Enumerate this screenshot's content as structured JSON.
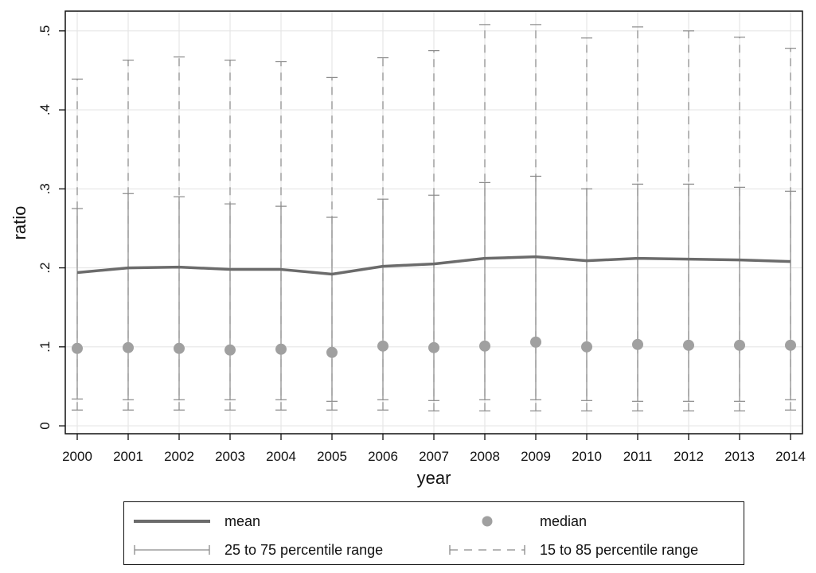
{
  "chart_data": {
    "type": "line",
    "xlabel": "year",
    "ylabel": "ratio",
    "x": [
      2000,
      2001,
      2002,
      2003,
      2004,
      2005,
      2006,
      2007,
      2008,
      2009,
      2010,
      2011,
      2012,
      2013,
      2014
    ],
    "x_tick_labels": [
      "2000",
      "2001",
      "2002",
      "2003",
      "2004",
      "2005",
      "2006",
      "2007",
      "2008",
      "2009",
      "2010",
      "2011",
      "2012",
      "2013",
      "2014"
    ],
    "y_ticks": [
      0,
      0.1,
      0.2,
      0.3,
      0.4,
      0.5
    ],
    "y_tick_labels": [
      "0",
      ".1",
      ".2",
      ".3",
      ".4",
      ".5"
    ],
    "ylim": [
      -0.01,
      0.525
    ],
    "grid": true,
    "legend_position": "bottom",
    "series": [
      {
        "name": "mean",
        "kind": "line",
        "color": "#6b6b6b",
        "values": [
          0.194,
          0.2,
          0.201,
          0.198,
          0.198,
          0.192,
          0.202,
          0.205,
          0.212,
          0.214,
          0.209,
          0.212,
          0.211,
          0.21,
          0.208
        ]
      },
      {
        "name": "median",
        "kind": "points",
        "color": "#a0a0a0",
        "values": [
          0.098,
          0.099,
          0.098,
          0.096,
          0.097,
          0.093,
          0.101,
          0.099,
          0.101,
          0.106,
          0.1,
          0.103,
          0.102,
          0.102,
          0.102
        ]
      },
      {
        "name": "25 to 75 percentile range",
        "kind": "range",
        "style": "solid",
        "color": "#8a8a8a",
        "low": [
          0.034,
          0.033,
          0.033,
          0.033,
          0.033,
          0.031,
          0.033,
          0.032,
          0.033,
          0.033,
          0.032,
          0.031,
          0.031,
          0.031,
          0.033
        ],
        "high": [
          0.275,
          0.294,
          0.29,
          0.281,
          0.278,
          0.264,
          0.287,
          0.292,
          0.308,
          0.316,
          0.3,
          0.306,
          0.306,
          0.302,
          0.297
        ]
      },
      {
        "name": "15 to 85 percentile range",
        "kind": "range",
        "style": "dashed",
        "color": "#8a8a8a",
        "low": [
          0.02,
          0.02,
          0.02,
          0.02,
          0.02,
          0.02,
          0.02,
          0.019,
          0.019,
          0.019,
          0.019,
          0.019,
          0.019,
          0.019,
          0.02
        ],
        "high": [
          0.439,
          0.463,
          0.467,
          0.463,
          0.461,
          0.441,
          0.466,
          0.475,
          0.508,
          0.508,
          0.491,
          0.505,
          0.5,
          0.492,
          0.478
        ]
      }
    ]
  },
  "legend": {
    "mean": "mean",
    "median": "median",
    "range_25_75": "25 to 75 percentile range",
    "range_15_85": "15 to 85 percentile range"
  }
}
